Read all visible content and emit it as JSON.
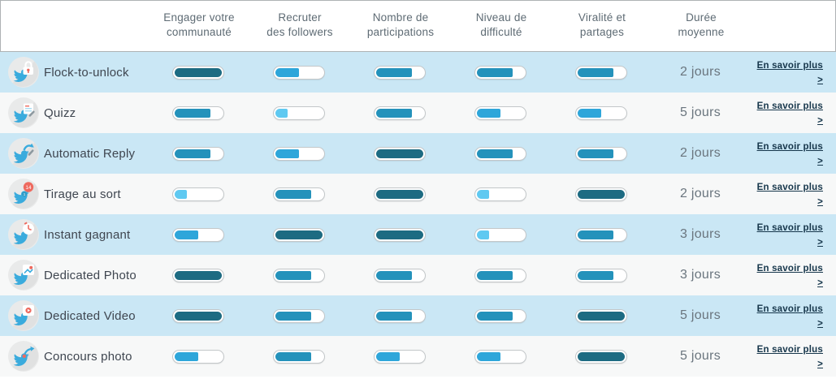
{
  "table": {
    "columns": [
      {
        "key": "engager-communaute",
        "line1": "Engager votre",
        "line2": "communauté"
      },
      {
        "key": "recruter-followers",
        "line1": "Recruter",
        "line2": "des followers"
      },
      {
        "key": "nombre-participations",
        "line1": "Nombre de",
        "line2": "participations"
      },
      {
        "key": "niveau-difficulte",
        "line1": "Niveau de",
        "line2": "difficulté"
      },
      {
        "key": "viralite-partages",
        "line1": "Viralité et",
        "line2": "partages"
      },
      {
        "key": "duree-moyenne",
        "line1": "Durée",
        "line2": "moyenne"
      }
    ],
    "link_label": "En savoir plus >",
    "levels": [
      {
        "value": 1,
        "pct": 25,
        "color": "#5fc9f1"
      },
      {
        "value": 2,
        "pct": 50,
        "color": "#2ea6da"
      },
      {
        "value": 3,
        "pct": 75,
        "color": "#2492bb"
      },
      {
        "value": 4,
        "pct": 100,
        "color": "#1d6b82"
      }
    ],
    "colors": {
      "row_blue": "#cae7f5",
      "row_alt": "#f7f8f8",
      "bar_track_border": "#c3c7c9",
      "link": "#16364b",
      "header_text": "#5e6b74",
      "badge_red": "#ee6a5f",
      "bird_blue": "#3aabdd"
    },
    "rows": [
      {
        "name": "Flock-to-unlock",
        "icon": "flock-to-unlock",
        "scores": [
          4,
          2,
          3,
          3,
          3
        ],
        "duree": "2 jours"
      },
      {
        "name": "Quizz",
        "icon": "quizz",
        "scores": [
          3,
          1,
          3,
          2,
          2
        ],
        "duree": "5 jours"
      },
      {
        "name": "Automatic Reply",
        "icon": "automatic-reply",
        "scores": [
          3,
          2,
          4,
          3,
          3
        ],
        "duree": "2 jours"
      },
      {
        "name": "Tirage au sort",
        "icon": "tirage-au-sort",
        "scores": [
          1,
          3,
          4,
          1,
          4
        ],
        "duree": "2 jours",
        "badge_count": "14",
        "badge_small": "1"
      },
      {
        "name": "Instant gagnant",
        "icon": "instant-gagnant",
        "scores": [
          2,
          4,
          4,
          1,
          3
        ],
        "duree": "3 jours"
      },
      {
        "name": "Dedicated Photo",
        "icon": "dedicated-photo",
        "scores": [
          4,
          3,
          3,
          3,
          3
        ],
        "duree": "3 jours"
      },
      {
        "name": "Dedicated Video",
        "icon": "dedicated-video",
        "scores": [
          4,
          3,
          3,
          3,
          4
        ],
        "duree": "5 jours"
      },
      {
        "name": "Concours photo",
        "icon": "concours-photo",
        "scores": [
          2,
          3,
          2,
          2,
          4
        ],
        "duree": "5 jours"
      }
    ]
  }
}
